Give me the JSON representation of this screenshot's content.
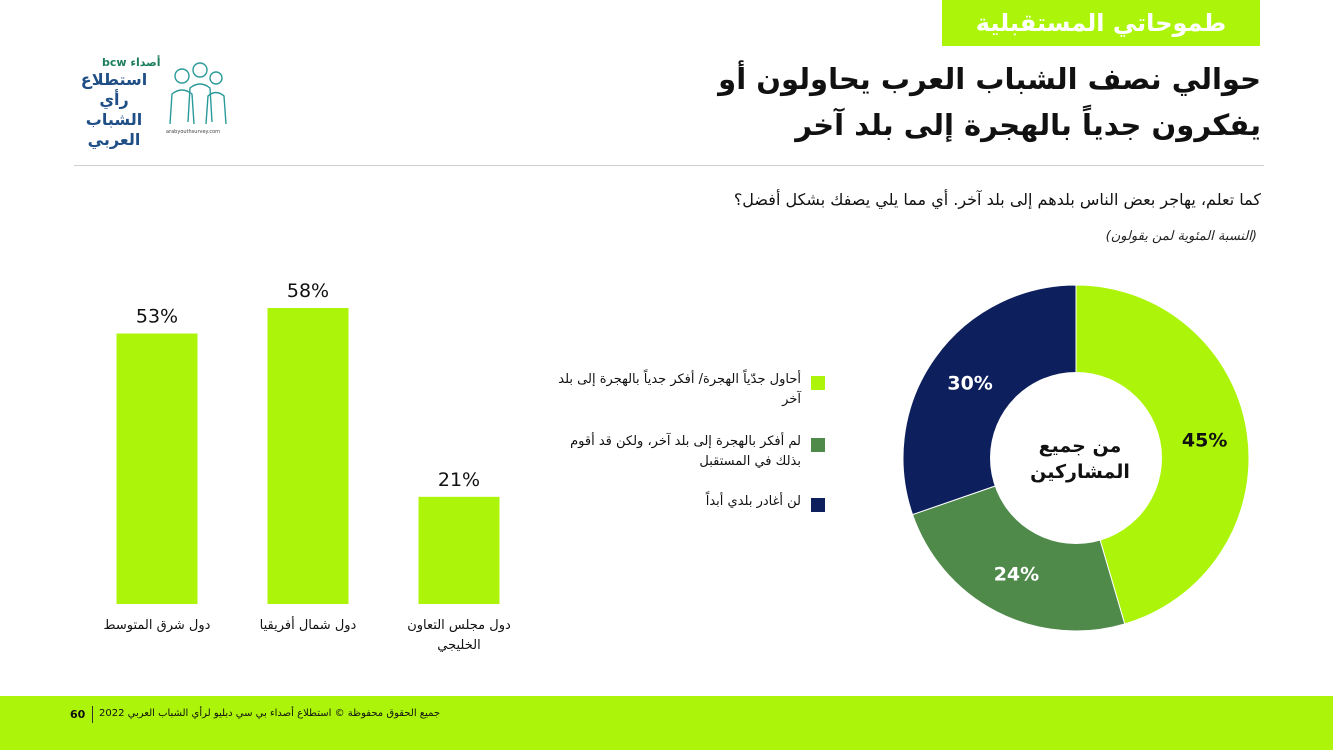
{
  "section_tag": "طموحاتي المستقبلية",
  "title_line1": "حوالي نصف الشباب العرب يحاولون أو",
  "title_line2": "يفكرون جدياً بالهجرة إلى بلد آخر",
  "logo": {
    "brand": "bcw أصداء",
    "line1": "استطلاع",
    "line2": "رأي الشباب",
    "line3": "العربي",
    "url": "arabyouthsurvey.com"
  },
  "question": "كما تعلم، يهاجر بعض الناس بلدهم إلى بلد آخر. أي مما يلي يصفك بشكل أفضل؟",
  "subnote": "(النسبة المئوية لمن يقولون)",
  "colors": {
    "lime": "#acf50a",
    "green": "#4f8a4b",
    "navy": "#0d1f5c"
  },
  "legend": [
    {
      "label": "أحاول جدّياً الهجرة/ أفكر جدياً بالهجرة إلى بلد آخر",
      "color": "#acf50a"
    },
    {
      "label": "لم أفكر بالهجرة إلى بلد آخر، ولكن قد أقوم بذلك في المستقبل",
      "color": "#4f8a4b"
    },
    {
      "label": "لن أغادر بلدي أبداً",
      "color": "#0d1f5c"
    }
  ],
  "chart_data": [
    {
      "type": "bar",
      "categories": [
        "دول شرق المتوسط",
        "دول شمال أفريقيا",
        "دول مجلس التعاون الخليجي"
      ],
      "values": [
        53,
        58,
        21
      ],
      "value_labels": [
        "53%",
        "58%",
        "21%"
      ],
      "ylim": [
        0,
        58
      ]
    },
    {
      "type": "pie",
      "donut": true,
      "center_label_line1": "من جميع",
      "center_label_line2": "المشاركين",
      "slices": [
        {
          "name": "أحاول جدّياً الهجرة/ أفكر جدياً بالهجرة إلى بلد آخر",
          "value": 45,
          "label": "45%",
          "color": "#acf50a"
        },
        {
          "name": "لم أفكر بالهجرة إلى بلد آخر، ولكن قد أقوم بذلك في المستقبل",
          "value": 24,
          "label": "24%",
          "color": "#4f8a4b"
        },
        {
          "name": "لن أغادر بلدي أبداً",
          "value": 30,
          "label": "30%",
          "color": "#0d1f5c"
        }
      ]
    }
  ],
  "footer": {
    "page": "60",
    "copyright": "جميع الحقوق محفوظة © استطلاع أصداء بي سي دبليو لرأي الشباب العربي 2022"
  }
}
